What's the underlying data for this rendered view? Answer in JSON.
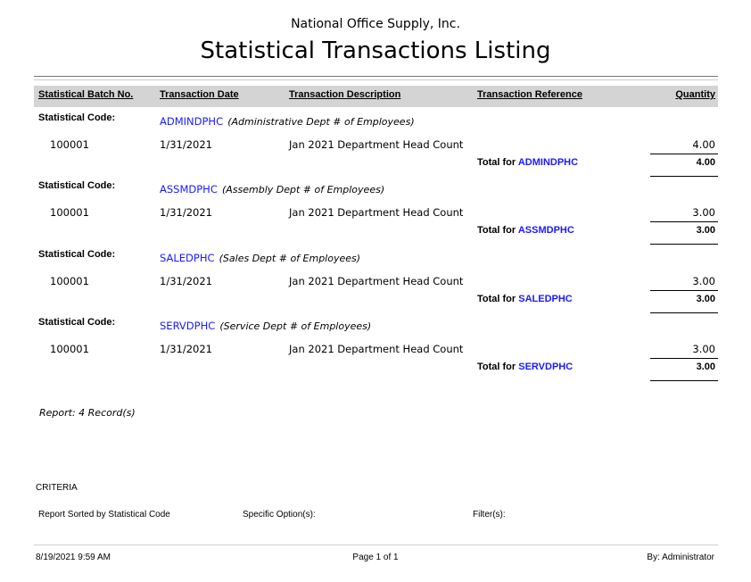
{
  "header": {
    "company": "National Office Supply, Inc.",
    "title": "Statistical Transactions Listing"
  },
  "columns": [
    "Statistical Batch No.",
    "Transaction Date",
    "Transaction Description",
    "Transaction Reference",
    "Quantity"
  ],
  "code_label": "Statistical Code:",
  "total_label": "Total for",
  "groups": [
    {
      "code": "ADMINDPHC",
      "description": "Administrative Dept # of Employees",
      "batch": "100001",
      "date": "1/31/2021",
      "txn_description": "Jan 2021 Department Head Count",
      "reference": "",
      "quantity": "4.00",
      "total": "4.00"
    },
    {
      "code": "ASSMDPHC",
      "description": "Assembly Dept # of Employees",
      "batch": "100001",
      "date": "1/31/2021",
      "txn_description": "Jan 2021 Department Head Count",
      "reference": "",
      "quantity": "3.00",
      "total": "3.00"
    },
    {
      "code": "SALEDPHC",
      "description": "Sales Dept # of Employees",
      "batch": "100001",
      "date": "1/31/2021",
      "txn_description": "Jan 2021 Department Head Count",
      "reference": "",
      "quantity": "3.00",
      "total": "3.00"
    },
    {
      "code": "SERVDPHC",
      "description": "Service Dept # of Employees",
      "batch": "100001",
      "date": "1/31/2021",
      "txn_description": "Jan 2021 Department Head Count",
      "reference": "",
      "quantity": "3.00",
      "total": "3.00"
    }
  ],
  "summary": "Report: 4 Record(s)",
  "criteria": {
    "title": "CRITERIA",
    "sorted": "Report Sorted by Statistical Code",
    "options": "Specific Option(s):",
    "filters": "Filter(s):"
  },
  "footer": {
    "printed": "8/19/2021 9:59 AM",
    "page": "Page 1 of 1",
    "by": "By: Administrator"
  },
  "colors": {
    "code_link": "#1a1aff",
    "header_band": "#d4d4d4"
  }
}
